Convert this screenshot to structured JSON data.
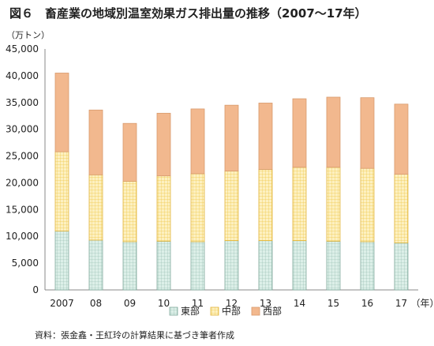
{
  "title": "図６　畜産業の地域別温室効果ガス排出量の推移（2007～17年）",
  "unit_label": "（万トン）",
  "source": "資料：張金鑫・王紅玲の計算結果に基づき筆者作成",
  "chart_data": {
    "type": "bar",
    "stacked": true,
    "categories": [
      "2007",
      "08",
      "09",
      "10",
      "11",
      "12",
      "13",
      "14",
      "15",
      "16",
      "17"
    ],
    "x_unit_label": "（年）",
    "ylim": [
      0,
      45000
    ],
    "yticks": [
      0,
      5000,
      10000,
      15000,
      20000,
      25000,
      30000,
      35000,
      40000,
      45000
    ],
    "ytick_labels": [
      "0",
      "5,000",
      "10,000",
      "15,000",
      "20,000",
      "25,000",
      "30,000",
      "35,000",
      "40,000",
      "45,000"
    ],
    "grid": false,
    "legend_position": "bottom",
    "series": [
      {
        "name": "東部",
        "color": "#d7ebe4",
        "pattern": "grid",
        "values": [
          11000,
          9300,
          9000,
          9100,
          9000,
          9200,
          9200,
          9200,
          9100,
          9000,
          8800
        ]
      },
      {
        "name": "中部",
        "color": "#fbe9a6",
        "pattern": "dots",
        "values": [
          14800,
          12200,
          11300,
          12200,
          12700,
          13000,
          13300,
          13700,
          13800,
          13700,
          12800
        ]
      },
      {
        "name": "西部",
        "color": "#f2b88e",
        "pattern": "solid",
        "values": [
          14700,
          12100,
          10800,
          11700,
          12100,
          12300,
          12400,
          12800,
          13100,
          13200,
          13100
        ]
      }
    ]
  }
}
